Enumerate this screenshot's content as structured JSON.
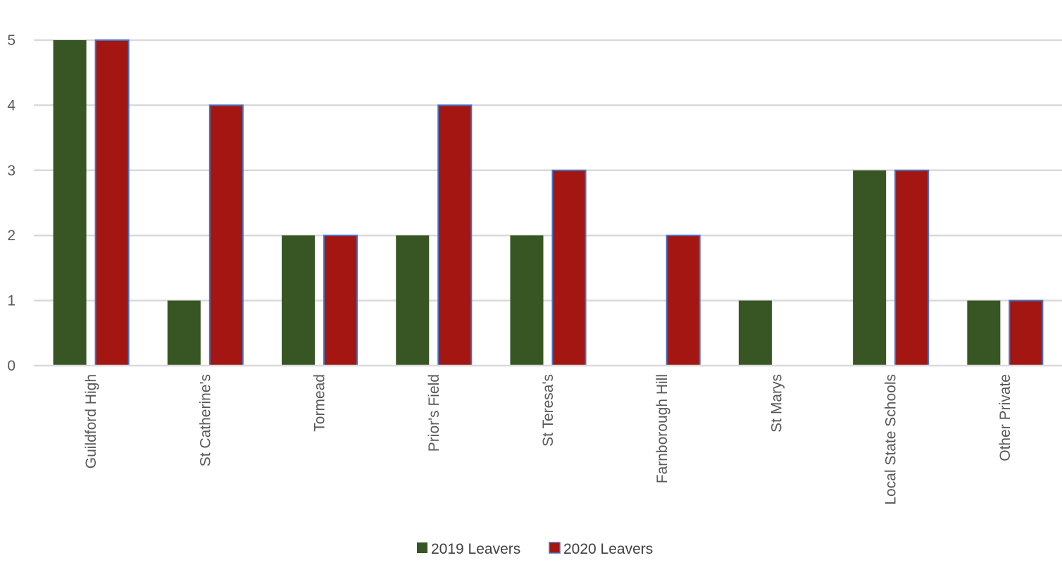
{
  "chart_data": {
    "type": "bar",
    "categories": [
      "Guildford High",
      "St Catherine's",
      "Tormead",
      "Prior's Field",
      "St Teresa's",
      "Farnborough Hill",
      "St Marys",
      "Local State Schools",
      "Other Private"
    ],
    "series": [
      {
        "name": "2019 Leavers",
        "values": [
          5,
          1,
          2,
          2,
          2,
          0,
          1,
          3,
          1
        ],
        "color": "#375623"
      },
      {
        "name": "2020 Leavers",
        "values": [
          5,
          4,
          2,
          4,
          3,
          2,
          0,
          3,
          1
        ],
        "color": "#A31611",
        "stroke": "#4472C4"
      }
    ],
    "y_ticks": [
      "0",
      "1",
      "2",
      "3",
      "4",
      "5"
    ],
    "ylim": [
      0,
      5
    ],
    "grid": true,
    "legend": "bottom"
  }
}
